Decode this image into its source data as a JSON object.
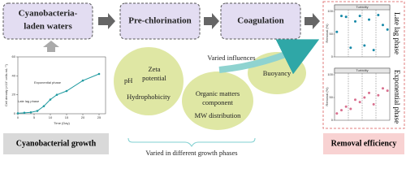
{
  "flow": {
    "steps": [
      [
        "Cyanobacteria-",
        "laden waters"
      ],
      [
        "Pre-chlorination"
      ],
      [
        "Coagulation"
      ]
    ]
  },
  "growth": {
    "type": "line",
    "title": "Cyanobacterial growth",
    "x_label": "Time (Day)",
    "y_label": "Cell density (×10⁷ cells mL⁻¹)",
    "annotations": [
      "Late lag phase",
      "Exponential phase"
    ],
    "x": [
      0,
      2,
      4,
      6,
      8,
      10,
      12,
      15,
      20,
      25
    ],
    "values": [
      0.5,
      1,
      1.5,
      3,
      8,
      15,
      20,
      24,
      35,
      42
    ],
    "xlim": [
      0,
      27
    ],
    "xticks": [
      0,
      5,
      10,
      15,
      20,
      25
    ],
    "ylim": [
      0,
      60
    ],
    "yticks": [
      0,
      20,
      40,
      60
    ],
    "color": "#1f9aa0"
  },
  "influences": {
    "label": "Varied influences",
    "items": [
      "pH",
      "Zeta",
      "potential",
      "Hydrophobicity",
      "Organic matters",
      "component",
      "MW distribution",
      "Buoyancy"
    ],
    "footer": "Varied  in different growth phases"
  },
  "removal": {
    "title": "Removal efficiency",
    "panels": [
      {
        "type": "scatter",
        "header": "Turbidity",
        "phase": "Late lag phase",
        "y_label": "Removal (%)",
        "ylim": [
          0,
          100
        ],
        "yticks": [
          0,
          50,
          100
        ],
        "color": "#1789a8",
        "values": [
          55,
          90,
          88,
          20,
          78,
          90,
          25,
          82,
          15,
          92,
          70,
          60
        ]
      },
      {
        "type": "scatter",
        "header": "Turbidity",
        "phase": "Exponential phase",
        "y_label": "Removal (%)",
        "ylim": [
          0,
          100
        ],
        "yticks": [
          0,
          50,
          100
        ],
        "color": "#d9708f",
        "values": [
          15,
          22,
          30,
          25,
          45,
          40,
          50,
          60,
          35,
          55,
          70,
          65
        ]
      }
    ]
  }
}
